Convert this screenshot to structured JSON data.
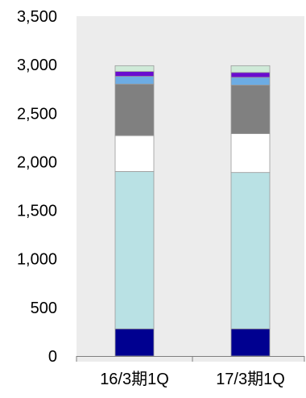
{
  "chart_data": {
    "type": "bar",
    "stacked": true,
    "categories": [
      "16/3期1Q",
      "17/3期1Q"
    ],
    "y_ticks": [
      "3,500",
      "3,000",
      "2,500",
      "2,000",
      "1,500",
      "1,000",
      "500",
      "0"
    ],
    "ylim": [
      0,
      3500
    ],
    "grid": false,
    "legend": "none",
    "plot_background": "#ececec",
    "series": [
      {
        "color": "#000090",
        "values": [
          280,
          280
        ]
      },
      {
        "color": "#b9e1e4",
        "values": [
          1620,
          1610
        ]
      },
      {
        "color": "#ffffff",
        "values": [
          370,
          400
        ]
      },
      {
        "color": "#808080",
        "values": [
          530,
          500
        ]
      },
      {
        "color": "#6cace4",
        "values": [
          80,
          80
        ]
      },
      {
        "color": "#6a0ccf",
        "values": [
          50,
          50
        ]
      },
      {
        "color": "#cfead8",
        "values": [
          60,
          70
        ]
      }
    ]
  }
}
